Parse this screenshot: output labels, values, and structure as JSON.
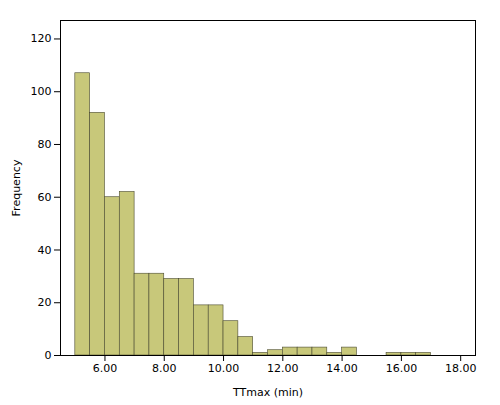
{
  "chart_data": {
    "type": "histogram",
    "bins": [
      5.0,
      5.5,
      6.0,
      6.5,
      7.0,
      7.5,
      8.0,
      8.5,
      9.0,
      9.5,
      10.0,
      10.5,
      11.0,
      11.5,
      12.0,
      12.5,
      13.0,
      13.5,
      14.0,
      14.5,
      15.0,
      15.5,
      16.0,
      16.5,
      17.0
    ],
    "values": [
      107,
      92,
      60,
      62,
      31,
      31,
      29,
      29,
      19,
      19,
      13,
      7,
      1,
      2,
      3,
      3,
      3,
      1,
      3,
      0,
      0,
      1,
      1,
      1
    ],
    "color": "#c8c87a",
    "xlabel": "TTmax (min)",
    "ylabel": "Frequency",
    "xlim": [
      4.5,
      18.5
    ],
    "ylim": [
      0,
      127
    ],
    "xticks": [
      {
        "value": 6.0,
        "label": "6.00"
      },
      {
        "value": 8.0,
        "label": "8.00"
      },
      {
        "value": 10.0,
        "label": "10.00"
      },
      {
        "value": 12.0,
        "label": "12.00"
      },
      {
        "value": 14.0,
        "label": "14.00"
      },
      {
        "value": 16.0,
        "label": "16.00"
      },
      {
        "value": 18.0,
        "label": "18.00"
      }
    ],
    "yticks": [
      0,
      20,
      40,
      60,
      80,
      100,
      120
    ],
    "grid": false
  }
}
